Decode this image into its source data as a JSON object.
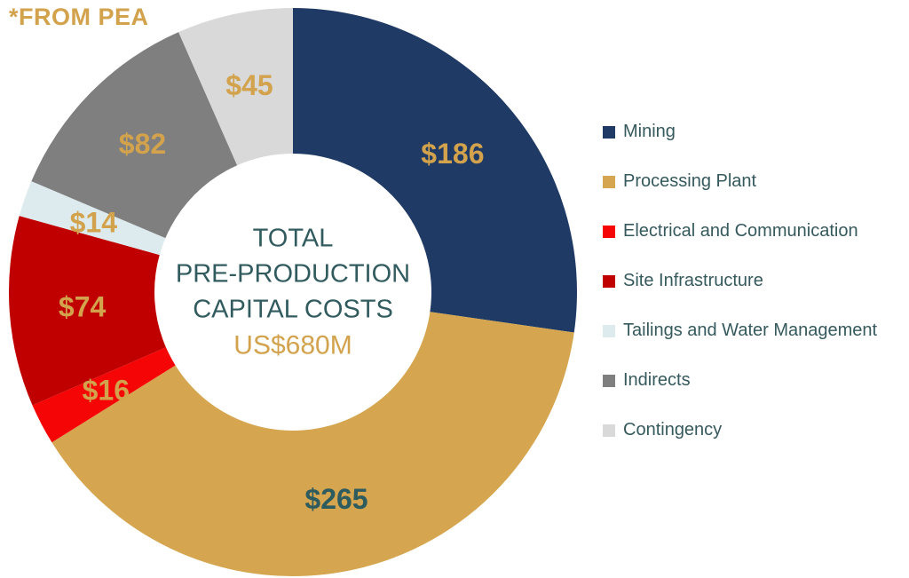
{
  "note": "*FROM PEA",
  "colors": {
    "background": "#FFFFFF",
    "gold_accent": "#D2A24C",
    "teal_text": "#315B5E",
    "legend_text": "#35595C"
  },
  "chart_data": {
    "type": "pie",
    "donut": true,
    "title": "TOTAL PRE-PRODUCTION CAPITAL COSTS",
    "center_lines": [
      "TOTAL",
      "PRE-PRODUCTION",
      "CAPITAL COSTS"
    ],
    "center_total": "US$680M",
    "start_angle_deg": 0,
    "direction": "clockwise",
    "legend_position": "right",
    "segments": [
      {
        "label": "Mining",
        "value": 186,
        "display": "$186",
        "color": "#1F3A64",
        "label_color": "#D2A24C"
      },
      {
        "label": "Processing Plant",
        "value": 265,
        "display": "$265",
        "color": "#D5A64F",
        "label_color": "#2E5B5E"
      },
      {
        "label": "Electrical and Communication",
        "value": 16,
        "display": "$16",
        "color": "#F50505",
        "label_color": "#D2A24C"
      },
      {
        "label": "Site Infrastructure",
        "value": 74,
        "display": "$74",
        "color": "#C00000",
        "label_color": "#D2A24C"
      },
      {
        "label": "Tailings and Water Management",
        "value": 14,
        "display": "$14",
        "color": "#DDEBEE",
        "label_color": "#D2A24C"
      },
      {
        "label": "Indirects",
        "value": 82,
        "display": "$82",
        "color": "#7F7F7F",
        "label_color": "#D2A24C"
      },
      {
        "label": "Contingency",
        "value": 45,
        "display": "$45",
        "color": "#D9D9D9",
        "label_color": "#D2A24C"
      }
    ]
  }
}
